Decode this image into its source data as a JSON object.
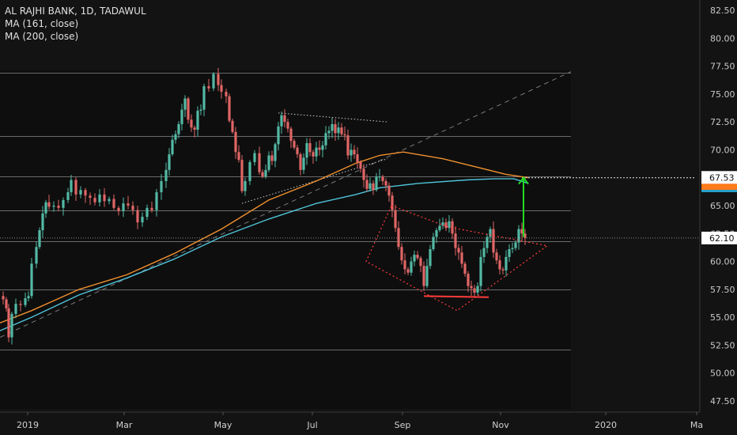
{
  "legend": {
    "symbol": "AL RAJHI BANK, 1D, TADAWUL",
    "ma1": "MA (161, close)",
    "ma2": "MA (200, close)"
  },
  "colors": {
    "background": "#131313",
    "plot_area": "#0e0e0e",
    "up_candle": "#53b9a4",
    "down_candle": "#e06666",
    "ma161": "#f0902e",
    "ma200": "#4fc3d9",
    "arrow": "#22dd22",
    "pattern": "#ff3b3b",
    "horizontal_lines": "#6a6a6a",
    "price_tag_bg": "#ffffff",
    "ma_tag": "#ff7a1a",
    "ma200_tag": "#26a0c8"
  },
  "chart_data": {
    "type": "candlestick",
    "y_axis": {
      "range": [
        46.5,
        83.5
      ],
      "ticks": [
        "82.50",
        "80.00",
        "77.50",
        "75.00",
        "72.50",
        "70.00",
        "67.50",
        "65.00",
        "62.50",
        "60.00",
        "57.50",
        "55.00",
        "52.50",
        "50.00",
        "47.50"
      ]
    },
    "x_axis": {
      "labels": [
        "2019",
        "Mar",
        "May",
        "Jul",
        "Sep",
        "Nov",
        "2020",
        "Ma"
      ]
    },
    "price_tags": {
      "target": "67.53",
      "last": "62.10"
    },
    "horizontal_levels": [
      76.9,
      71.2,
      67.6,
      64.6,
      61.8,
      57.5,
      52.1
    ],
    "series": [
      {
        "name": "MA (161, close)",
        "points": [
          [
            0,
            54.5
          ],
          [
            40,
            55.6
          ],
          [
            100,
            57.5
          ],
          [
            160,
            58.8
          ],
          [
            220,
            60.7
          ],
          [
            280,
            62.9
          ],
          [
            340,
            65.5
          ],
          [
            400,
            67.2
          ],
          [
            450,
            68.8
          ],
          [
            480,
            69.5
          ],
          [
            510,
            69.8
          ],
          [
            560,
            69.2
          ],
          [
            600,
            68.5
          ],
          [
            640,
            67.8
          ],
          [
            668,
            67.5
          ]
        ]
      },
      {
        "name": "MA (200, close)",
        "points": [
          [
            0,
            53.8
          ],
          [
            40,
            55.0
          ],
          [
            100,
            57.0
          ],
          [
            160,
            58.5
          ],
          [
            220,
            60.2
          ],
          [
            280,
            62.2
          ],
          [
            340,
            63.8
          ],
          [
            400,
            65.2
          ],
          [
            450,
            66.0
          ],
          [
            480,
            66.6
          ],
          [
            530,
            67.0
          ],
          [
            590,
            67.3
          ],
          [
            625,
            67.4
          ],
          [
            650,
            67.4
          ],
          [
            668,
            67.0
          ]
        ]
      }
    ],
    "price_path": [
      [
        4,
        56.6
      ],
      [
        8,
        55.8
      ],
      [
        11,
        53.2
      ],
      [
        15,
        55.3
      ],
      [
        20,
        56.2
      ],
      [
        26,
        56.1
      ],
      [
        32,
        56.7
      ],
      [
        36,
        56.9
      ],
      [
        40,
        59.8
      ],
      [
        46,
        61.3
      ],
      [
        50,
        62.8
      ],
      [
        54,
        64.3
      ],
      [
        58,
        65.3
      ],
      [
        62,
        64.9
      ],
      [
        68,
        65.0
      ],
      [
        74,
        64.8
      ],
      [
        80,
        65.5
      ],
      [
        86,
        66.2
      ],
      [
        90,
        67.3
      ],
      [
        96,
        66.0
      ],
      [
        102,
        66.4
      ],
      [
        108,
        65.9
      ],
      [
        114,
        65.7
      ],
      [
        120,
        65.3
      ],
      [
        126,
        66.0
      ],
      [
        132,
        65.4
      ],
      [
        138,
        65.6
      ],
      [
        144,
        64.8
      ],
      [
        150,
        64.5
      ],
      [
        156,
        65.2
      ],
      [
        162,
        65.0
      ],
      [
        168,
        64.6
      ],
      [
        174,
        63.5
      ],
      [
        180,
        64.0
      ],
      [
        186,
        64.8
      ],
      [
        192,
        64.6
      ],
      [
        198,
        66.2
      ],
      [
        204,
        67.2
      ],
      [
        210,
        68.2
      ],
      [
        214,
        69.6
      ],
      [
        218,
        70.9
      ],
      [
        222,
        71.4
      ],
      [
        226,
        72.3
      ],
      [
        230,
        73.6
      ],
      [
        234,
        74.6
      ],
      [
        238,
        72.7
      ],
      [
        242,
        72.0
      ],
      [
        246,
        71.8
      ],
      [
        250,
        73.5
      ],
      [
        254,
        73.6
      ],
      [
        258,
        75.7
      ],
      [
        264,
        75.5
      ],
      [
        270,
        76.8
      ],
      [
        276,
        75.8
      ],
      [
        280,
        75.2
      ],
      [
        286,
        74.8
      ],
      [
        290,
        72.6
      ],
      [
        294,
        71.6
      ],
      [
        298,
        69.8
      ],
      [
        302,
        69.1
      ],
      [
        306,
        66.3
      ],
      [
        310,
        67.2
      ],
      [
        316,
        68.9
      ],
      [
        322,
        69.7
      ],
      [
        328,
        68.0
      ],
      [
        332,
        67.6
      ],
      [
        336,
        68.2
      ],
      [
        340,
        69.5
      ],
      [
        344,
        69.0
      ],
      [
        348,
        70.5
      ],
      [
        352,
        72.1
      ],
      [
        356,
        73.1
      ],
      [
        360,
        72.5
      ],
      [
        364,
        71.9
      ],
      [
        368,
        70.8
      ],
      [
        372,
        70.2
      ],
      [
        376,
        69.6
      ],
      [
        380,
        68.2
      ],
      [
        384,
        69.3
      ],
      [
        388,
        70.6
      ],
      [
        392,
        69.8
      ],
      [
        396,
        69.4
      ],
      [
        400,
        70.2
      ],
      [
        404,
        70.0
      ],
      [
        408,
        70.4
      ],
      [
        412,
        71.5
      ],
      [
        416,
        71.7
      ],
      [
        420,
        72.3
      ],
      [
        424,
        71.5
      ],
      [
        428,
        72.0
      ],
      [
        432,
        71.4
      ],
      [
        436,
        71.3
      ],
      [
        440,
        69.5
      ],
      [
        444,
        70.0
      ],
      [
        448,
        69.6
      ],
      [
        452,
        68.9
      ],
      [
        456,
        68.3
      ],
      [
        460,
        67.3
      ],
      [
        464,
        66.5
      ],
      [
        468,
        67.0
      ],
      [
        472,
        66.4
      ],
      [
        476,
        67.6
      ],
      [
        480,
        67.6
      ],
      [
        484,
        67.2
      ],
      [
        488,
        66.8
      ],
      [
        492,
        65.9
      ],
      [
        496,
        64.6
      ],
      [
        500,
        63.0
      ],
      [
        504,
        61.3
      ],
      [
        508,
        60.1
      ],
      [
        512,
        59.3
      ],
      [
        516,
        59.0
      ],
      [
        520,
        60.0
      ],
      [
        524,
        60.6
      ],
      [
        528,
        60.3
      ],
      [
        532,
        59.6
      ],
      [
        536,
        57.8
      ],
      [
        540,
        59.6
      ],
      [
        544,
        61.1
      ],
      [
        548,
        62.2
      ],
      [
        552,
        62.8
      ],
      [
        556,
        63.2
      ],
      [
        560,
        63.5
      ],
      [
        564,
        63.0
      ],
      [
        568,
        63.6
      ],
      [
        572,
        62.5
      ],
      [
        576,
        61.2
      ],
      [
        580,
        60.8
      ],
      [
        584,
        59.8
      ],
      [
        588,
        58.9
      ],
      [
        592,
        57.8
      ],
      [
        596,
        57.6
      ],
      [
        600,
        57.2
      ],
      [
        604,
        57.8
      ],
      [
        608,
        60.4
      ],
      [
        612,
        61.2
      ],
      [
        616,
        62.2
      ],
      [
        620,
        62.9
      ],
      [
        624,
        60.8
      ],
      [
        628,
        60.1
      ],
      [
        632,
        59.3
      ],
      [
        636,
        59.2
      ],
      [
        640,
        60.4
      ],
      [
        644,
        61.1
      ],
      [
        648,
        61.2
      ],
      [
        652,
        61.7
      ],
      [
        656,
        62.9
      ],
      [
        660,
        62.5
      ],
      [
        664,
        62.1
      ]
    ],
    "annotations": {
      "trend_line": {
        "from": [
          0,
          53.2
        ],
        "to": [
          722,
          77.0
        ]
      },
      "wedge_top": {
        "from": [
          352,
          73.3
        ],
        "to": [
          490,
          72.5
        ]
      },
      "wedge_bottom": {
        "from": [
          306,
          65.2
        ],
        "to": [
          490,
          69.2
        ]
      },
      "diamond": [
        [
          495,
          65.0
        ],
        [
          566,
          63.1
        ],
        [
          692,
          61.4
        ],
        [
          578,
          55.6
        ],
        [
          463,
          60.0
        ]
      ],
      "support": {
        "from": [
          536,
          56.9
        ],
        "to": [
          618,
          56.8
        ]
      },
      "target_arrow": {
        "x": 662,
        "from": 62.2,
        "to": 67.5
      },
      "target_dotted": {
        "from": 660,
        "to": 880,
        "y": 67.5
      }
    }
  }
}
